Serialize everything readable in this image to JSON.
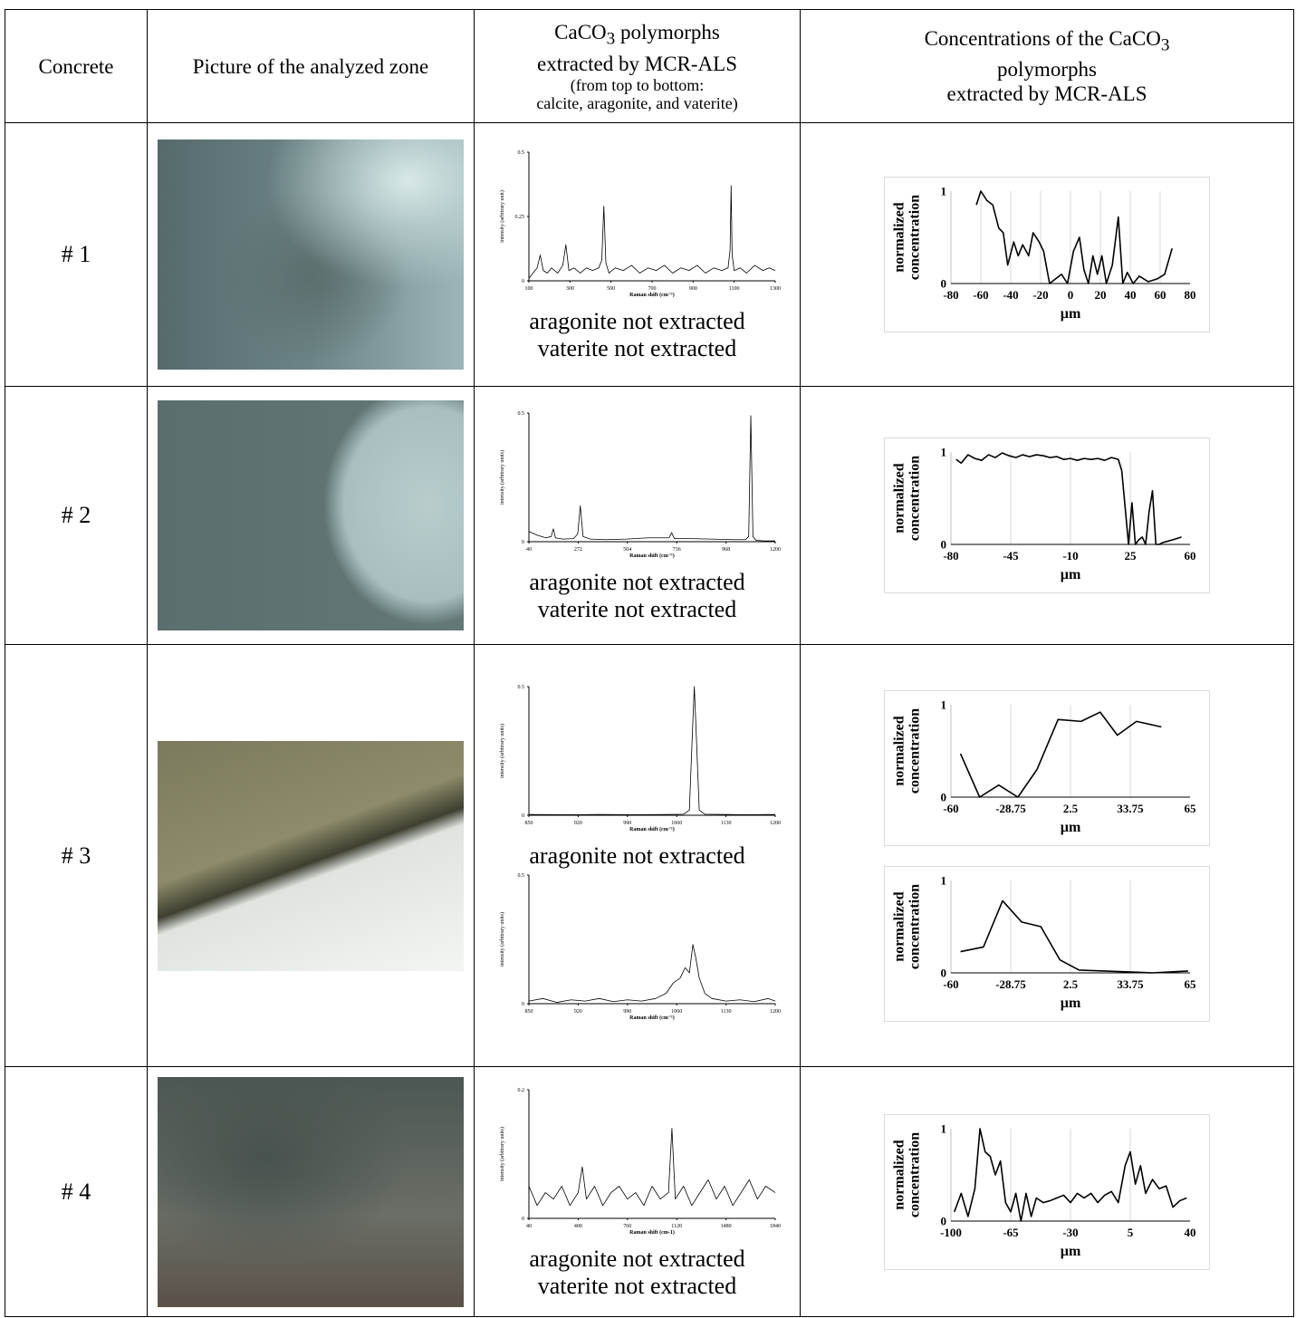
{
  "table": {
    "header": {
      "concrete": "Concrete",
      "picture": "Picture of the analyzed zone",
      "polymorphs": {
        "pre": "CaCO",
        "sub": "3",
        "post": " polymorphs",
        "line2": "extracted by MCR-ALS",
        "note1": "(from top to bottom:",
        "note2": "calcite, aragonite, and vaterite)"
      },
      "concentrations": {
        "pre": "Concentrations of the CaCO",
        "sub": "3",
        "line2": "polymorphs",
        "line3": "extracted by MCR-ALS"
      }
    },
    "rows": [
      {
        "label": "# 1",
        "polymorphs": [
          {
            "type": "line",
            "color": "#000000",
            "xlabel": "Raman shift (cm⁻¹)",
            "ylabel": [
              "intensity (arbitrary unit)"
            ],
            "xlim": [
              100,
              1300
            ],
            "ylim": [
              0,
              0.5
            ],
            "xticks": [
              100,
              300,
              500,
              700,
              900,
              1100,
              1300
            ],
            "yticks": [
              0,
              0.25,
              0.5
            ],
            "x": [
              100,
              120,
              140,
              155,
              170,
              190,
              210,
              240,
              265,
              280,
              295,
              320,
              350,
              380,
              410,
              440,
              455,
              465,
              475,
              490,
              520,
              560,
              600,
              640,
              680,
              720,
              760,
              800,
              840,
              880,
              920,
              960,
              1000,
              1040,
              1070,
              1080,
              1085,
              1090,
              1100,
              1130,
              1160,
              1200,
              1240,
              1270,
              1300
            ],
            "values": [
              0.01,
              0.03,
              0.05,
              0.1,
              0.04,
              0.03,
              0.05,
              0.03,
              0.06,
              0.14,
              0.04,
              0.05,
              0.03,
              0.05,
              0.04,
              0.05,
              0.08,
              0.29,
              0.07,
              0.03,
              0.05,
              0.04,
              0.06,
              0.03,
              0.05,
              0.04,
              0.06,
              0.03,
              0.05,
              0.04,
              0.06,
              0.03,
              0.05,
              0.04,
              0.05,
              0.12,
              0.37,
              0.1,
              0.04,
              0.05,
              0.03,
              0.06,
              0.04,
              0.05,
              0.04
            ]
          },
          {
            "note": "aragonite not extracted"
          },
          {
            "note": "vaterite not extracted"
          }
        ],
        "concentrations": [
          {
            "type": "line",
            "color": "#000000",
            "grid": true,
            "xlabel": "µm",
            "ylabel": [
              "normalized",
              "concentration"
            ],
            "xlim": [
              -80,
              80
            ],
            "ylim": [
              0,
              1
            ],
            "xticks": [
              -80,
              -60,
              -40,
              -20,
              0,
              20,
              40,
              60,
              80
            ],
            "yticks": [
              0,
              1
            ],
            "x": [
              -63,
              -60,
              -56,
              -52,
              -48,
              -45,
              -42,
              -38,
              -35,
              -32,
              -28,
              -25,
              -21,
              -18,
              -14,
              -10,
              -6,
              -2,
              2,
              6,
              9,
              12,
              15,
              18,
              21,
              24,
              28,
              32,
              35,
              38,
              42,
              46,
              52,
              58,
              63,
              68
            ],
            "values": [
              0.85,
              1,
              0.9,
              0.85,
              0.6,
              0.55,
              0.2,
              0.45,
              0.3,
              0.42,
              0.3,
              0.55,
              0.45,
              0.35,
              0,
              0.05,
              0.1,
              0,
              0.35,
              0.5,
              0.15,
              0,
              0.3,
              0.1,
              0.3,
              0,
              0.2,
              0.72,
              0,
              0.12,
              0,
              0.08,
              0.02,
              0.05,
              0.1,
              0.38
            ]
          }
        ]
      },
      {
        "label": "# 2",
        "polymorphs": [
          {
            "type": "line",
            "color": "#000000",
            "xlabel": "Raman shift (cm⁻¹)",
            "ylabel": [
              "intensity (arbitrary units)"
            ],
            "xlim": [
              40,
              1200
            ],
            "ylim": [
              0,
              0.5
            ],
            "xticks": [
              40,
              272,
              504,
              736,
              968,
              1200
            ],
            "yticks": [
              0,
              0.5
            ],
            "x": [
              40,
              80,
              120,
              145,
              155,
              165,
              200,
              250,
              270,
              282,
              295,
              330,
              400,
              500,
              600,
              700,
              712,
              725,
              800,
              900,
              1000,
              1060,
              1075,
              1085,
              1095,
              1110,
              1150,
              1200
            ],
            "values": [
              0.04,
              0.025,
              0.015,
              0.02,
              0.05,
              0.015,
              0.01,
              0.012,
              0.03,
              0.14,
              0.02,
              0.01,
              0.008,
              0.01,
              0.015,
              0.015,
              0.035,
              0.012,
              0.012,
              0.01,
              0.008,
              0.008,
              0.02,
              0.49,
              0.02,
              0.005,
              0.003,
              0.003
            ]
          },
          {
            "note": "aragonite not extracted"
          },
          {
            "note": "vaterite not extracted"
          }
        ],
        "concentrations": [
          {
            "type": "line",
            "color": "#000000",
            "grid": true,
            "xlabel": "µm",
            "ylabel": [
              "normalized",
              "concentration"
            ],
            "xlim": [
              -80,
              60
            ],
            "ylim": [
              0,
              1
            ],
            "xticks": [
              -80,
              -45,
              -10,
              25,
              60
            ],
            "yticks": [
              0,
              1
            ],
            "x": [
              -77,
              -74,
              -70,
              -66,
              -62,
              -58,
              -54,
              -50,
              -46,
              -42,
              -38,
              -34,
              -30,
              -26,
              -22,
              -18,
              -14,
              -10,
              -6,
              -2,
              2,
              6,
              10,
              14,
              18,
              20,
              22,
              24,
              26,
              28,
              30,
              32,
              34,
              36,
              38,
              40,
              42,
              44,
              46,
              50,
              55
            ],
            "values": [
              0.92,
              0.88,
              0.97,
              0.93,
              0.91,
              0.97,
              0.94,
              0.99,
              0.96,
              0.94,
              0.97,
              0.95,
              0.97,
              0.96,
              0.94,
              0.95,
              0.92,
              0.93,
              0.91,
              0.93,
              0.92,
              0.93,
              0.91,
              0.94,
              0.92,
              0.8,
              0.4,
              0,
              0.45,
              0,
              0.05,
              0.08,
              0,
              0.35,
              0.58,
              0,
              0,
              0.02,
              0.03,
              0.05,
              0.08
            ]
          }
        ]
      },
      {
        "label": "# 3",
        "polymorphs": [
          {
            "type": "line",
            "color": "#000000",
            "xlabel": "Raman shift (cm⁻¹)",
            "ylabel": [
              "intensity (arbitrary units)"
            ],
            "xlim": [
              850,
              1200
            ],
            "ylim": [
              0,
              0.5
            ],
            "xticks": [
              850,
              920,
              990,
              1060,
              1130,
              1200
            ],
            "yticks": [
              0,
              0.5
            ],
            "x": [
              850,
              900,
              950,
              1000,
              1050,
              1070,
              1078,
              1082,
              1085,
              1088,
              1092,
              1100,
              1130,
              1160,
              1200
            ],
            "values": [
              0.003,
              0.002,
              0.003,
              0.002,
              0.003,
              0.004,
              0.02,
              0.3,
              0.5,
              0.3,
              0.02,
              0.004,
              0.003,
              0.002,
              0.003
            ]
          },
          {
            "note": "aragonite not extracted"
          },
          {
            "type": "line",
            "color": "#000000",
            "xlabel": "Raman shift (cm⁻¹)",
            "ylabel": [
              "intensity (arbitrary units)"
            ],
            "xlim": [
              850,
              1200
            ],
            "ylim": [
              0,
              0.5
            ],
            "xticks": [
              850,
              920,
              990,
              1060,
              1130,
              1200
            ],
            "yticks": [
              0,
              0.5
            ],
            "x": [
              850,
              870,
              890,
              910,
              930,
              950,
              970,
              990,
              1010,
              1030,
              1045,
              1055,
              1065,
              1072,
              1078,
              1083,
              1087,
              1092,
              1100,
              1110,
              1130,
              1150,
              1170,
              1190,
              1200
            ],
            "values": [
              0.01,
              0.02,
              0.005,
              0.015,
              0.01,
              0.02,
              0.008,
              0.015,
              0.01,
              0.02,
              0.04,
              0.08,
              0.1,
              0.14,
              0.12,
              0.23,
              0.18,
              0.1,
              0.04,
              0.02,
              0.01,
              0.015,
              0.008,
              0.02,
              0.01
            ]
          }
        ],
        "concentrations": [
          {
            "type": "line",
            "color": "#000000",
            "grid": true,
            "xlabel": "µm",
            "ylabel": [
              "normalized",
              "concentration"
            ],
            "xlim": [
              -60,
              65
            ],
            "ylim": [
              0,
              1
            ],
            "xticks": [
              -60,
              -28.75,
              2.5,
              33.75,
              65
            ],
            "yticks": [
              0,
              1
            ],
            "x": [
              -55,
              -45,
              -35,
              -25,
              -15,
              -4,
              8,
              18,
              27,
              37,
              50
            ],
            "values": [
              0.47,
              0,
              0.13,
              0,
              0.3,
              0.84,
              0.82,
              0.92,
              0.67,
              0.82,
              0.76
            ]
          },
          {
            "type": "line",
            "color": "#000000",
            "grid": true,
            "xlabel": "µm",
            "ylabel": [
              "normalized",
              "concentration"
            ],
            "xlim": [
              -60,
              65
            ],
            "ylim": [
              0,
              1
            ],
            "xticks": [
              -60,
              -28.75,
              2.5,
              33.75,
              65
            ],
            "yticks": [
              0,
              1
            ],
            "x": [
              -55,
              -43,
              -33,
              -23,
              -13,
              -3,
              7,
              20,
              33,
              45,
              55,
              64
            ],
            "values": [
              0.23,
              0.28,
              0.78,
              0.55,
              0.5,
              0.14,
              0.03,
              0.02,
              0.01,
              0,
              0.01,
              0.02
            ]
          }
        ]
      },
      {
        "label": "# 4",
        "polymorphs": [
          {
            "type": "line",
            "color": "#000000",
            "xlabel": "Raman shift (cm-1)",
            "ylabel": [
              "intensity (arbitrary units)"
            ],
            "xlim": [
              40,
              1840
            ],
            "ylim": [
              0,
              0.2
            ],
            "xticks": [
              40,
              400,
              760,
              1120,
              1480,
              1840
            ],
            "yticks": [
              0,
              0.2
            ],
            "x": [
              40,
              100,
              160,
              220,
              280,
              340,
              400,
              430,
              460,
              520,
              580,
              640,
              700,
              760,
              820,
              880,
              940,
              1000,
              1060,
              1085,
              1110,
              1170,
              1230,
              1290,
              1350,
              1410,
              1470,
              1530,
              1590,
              1650,
              1710,
              1770,
              1840
            ],
            "values": [
              0.05,
              0.02,
              0.04,
              0.03,
              0.05,
              0.02,
              0.04,
              0.08,
              0.03,
              0.05,
              0.02,
              0.04,
              0.05,
              0.03,
              0.04,
              0.02,
              0.05,
              0.03,
              0.04,
              0.14,
              0.03,
              0.05,
              0.02,
              0.04,
              0.06,
              0.03,
              0.05,
              0.02,
              0.04,
              0.06,
              0.03,
              0.05,
              0.04
            ]
          },
          {
            "note": "aragonite not extracted"
          },
          {
            "note": "vaterite not extracted"
          }
        ],
        "concentrations": [
          {
            "type": "line",
            "color": "#000000",
            "grid": true,
            "xlabel": "µm",
            "ylabel": [
              "normalized",
              "concentration"
            ],
            "xlim": [
              -100,
              40
            ],
            "ylim": [
              0,
              1
            ],
            "xticks": [
              -100,
              -65,
              -30,
              5,
              40
            ],
            "yticks": [
              0,
              1
            ],
            "x": [
              -98,
              -94,
              -90,
              -86,
              -83,
              -80,
              -77,
              -74,
              -71,
              -68,
              -65,
              -62,
              -59,
              -56,
              -53,
              -50,
              -46,
              -42,
              -38,
              -34,
              -30,
              -26,
              -22,
              -18,
              -14,
              -10,
              -6,
              -2,
              2,
              5,
              8,
              11,
              14,
              18,
              22,
              26,
              30,
              34,
              38
            ],
            "values": [
              0.1,
              0.3,
              0.05,
              0.35,
              1,
              0.75,
              0.7,
              0.5,
              0.65,
              0.2,
              0.1,
              0.3,
              0,
              0.3,
              0.05,
              0.25,
              0.2,
              0.22,
              0.25,
              0.28,
              0.2,
              0.3,
              0.25,
              0.3,
              0.2,
              0.28,
              0.32,
              0.2,
              0.6,
              0.75,
              0.4,
              0.6,
              0.3,
              0.45,
              0.35,
              0.38,
              0.15,
              0.22,
              0.25
            ]
          }
        ]
      }
    ]
  }
}
